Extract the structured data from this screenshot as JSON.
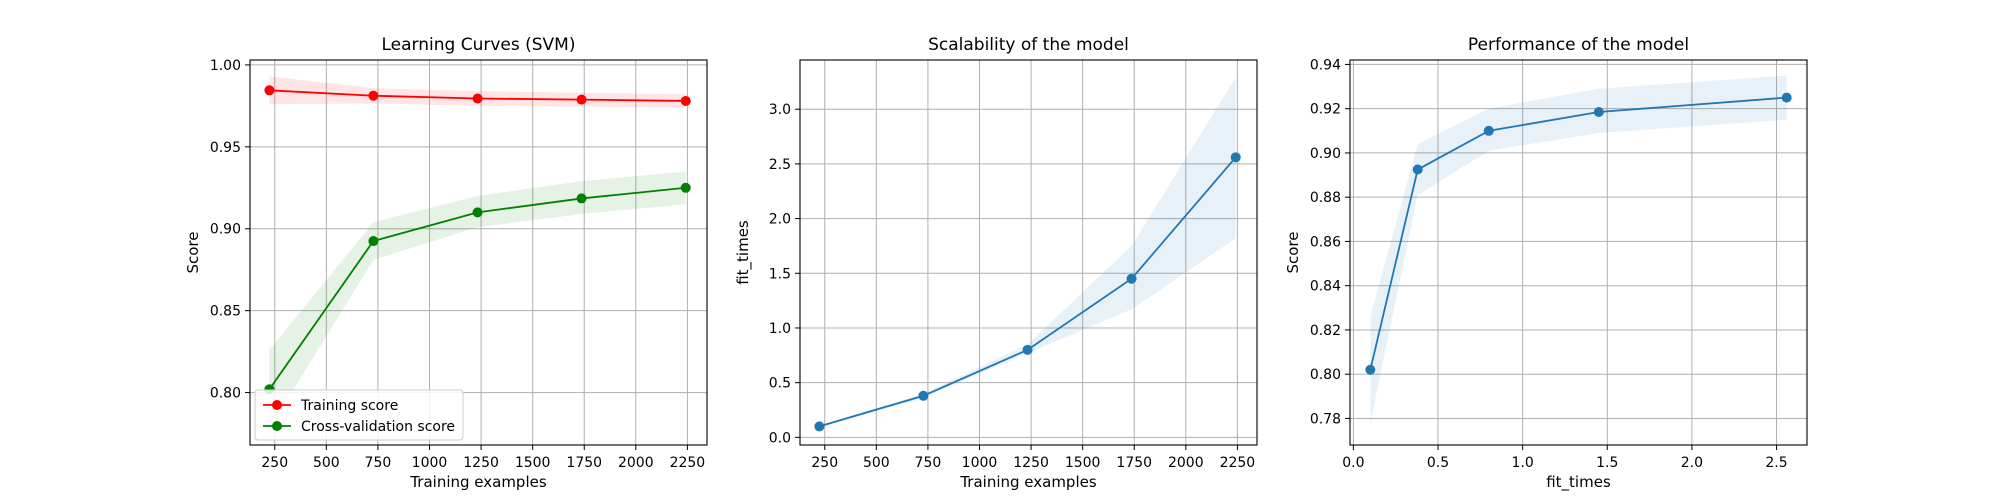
{
  "chart_data": [
    {
      "type": "line",
      "title": "Learning Curves (SVM)",
      "xlabel": "Training examples",
      "ylabel": "Score",
      "xlim": [
        130,
        2345
      ],
      "ylim": [
        0.768,
        1.003
      ],
      "xticks": [
        250,
        500,
        750,
        1000,
        1250,
        1500,
        1750,
        2000,
        2250
      ],
      "xtick_labels": [
        "250",
        "500",
        "750",
        "1000",
        "1250",
        "1500",
        "1750",
        "2000",
        "2250"
      ],
      "yticks": [
        0.8,
        0.85,
        0.9,
        0.95,
        1.0
      ],
      "ytick_labels": [
        "0.80",
        "0.85",
        "0.90",
        "0.95",
        "1.00"
      ],
      "grid": true,
      "legend": "lower-left",
      "series": [
        {
          "name": "Training score",
          "color": "#ff0000",
          "x": [
            224,
            728,
            1233,
            1737,
            2242
          ],
          "y": [
            0.9845,
            0.9812,
            0.9795,
            0.9788,
            0.978
          ],
          "lower": [
            0.976,
            0.9765,
            0.975,
            0.9745,
            0.974
          ],
          "upper": [
            0.993,
            0.9858,
            0.984,
            0.983,
            0.982
          ]
        },
        {
          "name": "Cross-validation score",
          "color": "#008000",
          "x": [
            224,
            728,
            1233,
            1737,
            2242
          ],
          "y": [
            0.802,
            0.8925,
            0.91,
            0.9185,
            0.925
          ],
          "lower": [
            0.778,
            0.881,
            0.901,
            0.909,
            0.915
          ],
          "upper": [
            0.826,
            0.904,
            0.92,
            0.929,
            0.935
          ]
        }
      ]
    },
    {
      "type": "line",
      "title": "Scalability of the model",
      "xlabel": "Training examples",
      "ylabel": "fit_times",
      "xlim": [
        130,
        2345
      ],
      "ylim": [
        -0.07,
        3.45
      ],
      "xticks": [
        250,
        500,
        750,
        1000,
        1250,
        1500,
        1750,
        2000,
        2250
      ],
      "xtick_labels": [
        "250",
        "500",
        "750",
        "1000",
        "1250",
        "1500",
        "1750",
        "2000",
        "2250"
      ],
      "yticks": [
        0.0,
        0.5,
        1.0,
        1.5,
        2.0,
        2.5,
        3.0
      ],
      "ytick_labels": [
        "0.0",
        "0.5",
        "1.0",
        "1.5",
        "2.0",
        "2.5",
        "3.0"
      ],
      "grid": true,
      "series": [
        {
          "color": "#1f77b4",
          "x": [
            224,
            728,
            1233,
            1737,
            2242
          ],
          "y": [
            0.1,
            0.38,
            0.8,
            1.45,
            2.56
          ],
          "lower": [
            0.09,
            0.36,
            0.77,
            1.17,
            1.82
          ],
          "upper": [
            0.11,
            0.4,
            0.85,
            1.75,
            3.29
          ]
        }
      ]
    },
    {
      "type": "line",
      "title": "Performance of the model",
      "xlabel": "fit_times",
      "ylabel": "Score",
      "xlim": [
        -0.02,
        2.68
      ],
      "ylim": [
        0.768,
        0.942
      ],
      "xticks": [
        0.0,
        0.5,
        1.0,
        1.5,
        2.0,
        2.5
      ],
      "xtick_labels": [
        "0.0",
        "0.5",
        "1.0",
        "1.5",
        "2.0",
        "2.5"
      ],
      "yticks": [
        0.78,
        0.8,
        0.82,
        0.84,
        0.86,
        0.88,
        0.9,
        0.92,
        0.94
      ],
      "ytick_labels": [
        "0.78",
        "0.80",
        "0.82",
        "0.84",
        "0.86",
        "0.88",
        "0.90",
        "0.92",
        "0.94"
      ],
      "grid": true,
      "series": [
        {
          "color": "#1f77b4",
          "x": [
            0.1,
            0.38,
            0.8,
            1.45,
            2.56
          ],
          "y": [
            0.802,
            0.8925,
            0.91,
            0.9185,
            0.925
          ],
          "lower": [
            0.778,
            0.881,
            0.901,
            0.909,
            0.915
          ],
          "upper": [
            0.826,
            0.904,
            0.92,
            0.929,
            0.935
          ]
        }
      ]
    }
  ]
}
